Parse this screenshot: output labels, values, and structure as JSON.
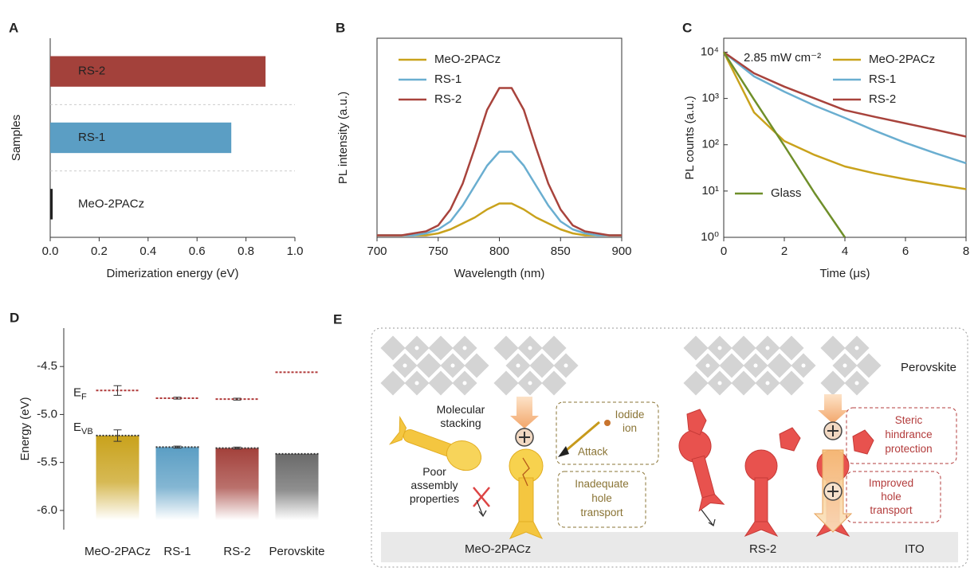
{
  "chart_data": [
    {
      "type": "hbar",
      "panel": "A",
      "categories": [
        "MeO-2PACz",
        "RS-1",
        "RS-2"
      ],
      "values": [
        0.01,
        0.74,
        0.88
      ],
      "colors": [
        "#222222",
        "#5b9ec4",
        "#a3413b"
      ],
      "xlim": [
        0,
        1
      ],
      "xticks": [
        {
          "value": 0,
          "label": "0.0"
        },
        0.2,
        0.4,
        0.6,
        0.8,
        {
          "value": 1,
          "label": "1.0"
        }
      ],
      "xlabel": "Dimerization energy (eV)",
      "ylabel": "Samples"
    },
    {
      "type": "line",
      "panel": "B",
      "xlabel": "Wavelength (nm)",
      "ylabel": "PL intensity (a.u.)",
      "x": [
        700,
        710,
        720,
        730,
        740,
        750,
        760,
        770,
        780,
        790,
        800,
        810,
        820,
        830,
        840,
        850,
        860,
        870,
        880,
        890,
        900
      ],
      "xlim": [
        700,
        900
      ],
      "xticks": [
        700,
        750,
        800,
        850,
        900
      ],
      "ylim": [
        0,
        1
      ],
      "legend": "upper left",
      "series": [
        {
          "name": "MeO-2PACz",
          "color": "#c9a21c",
          "values": [
            0.01,
            0.01,
            0.01,
            0.01,
            0.01,
            0.02,
            0.04,
            0.07,
            0.1,
            0.14,
            0.17,
            0.17,
            0.14,
            0.1,
            0.07,
            0.04,
            0.02,
            0.01,
            0.01,
            0.01,
            0.01
          ]
        },
        {
          "name": "RS-1",
          "color": "#6aaed0",
          "values": [
            0.01,
            0.01,
            0.01,
            0.01,
            0.02,
            0.04,
            0.08,
            0.16,
            0.26,
            0.36,
            0.43,
            0.43,
            0.36,
            0.26,
            0.16,
            0.08,
            0.04,
            0.02,
            0.01,
            0.01,
            0.01
          ]
        },
        {
          "name": "RS-2",
          "color": "#a8433c",
          "values": [
            0.01,
            0.01,
            0.01,
            0.02,
            0.03,
            0.06,
            0.14,
            0.27,
            0.45,
            0.64,
            0.75,
            0.75,
            0.64,
            0.45,
            0.27,
            0.14,
            0.06,
            0.03,
            0.02,
            0.01,
            0.01
          ]
        }
      ]
    },
    {
      "type": "line",
      "panel": "C",
      "xlabel": "Time (μs)",
      "ylabel": "PL counts (a.u.)",
      "log_y": true,
      "annotation": "2.85 mW cm⁻²",
      "x": [
        0,
        1,
        2,
        3,
        4,
        5,
        6,
        7,
        8
      ],
      "xlim": [
        0,
        8
      ],
      "xticks": [
        0,
        2,
        4,
        6,
        8
      ],
      "ylim": [
        1,
        20000
      ],
      "yticks": [
        {
          "value": 1,
          "label": "10⁰"
        },
        {
          "value": 10,
          "label": "10¹"
        },
        {
          "value": 100,
          "label": "10²"
        },
        {
          "value": 1000,
          "label": "10³"
        },
        {
          "value": 10000,
          "label": "10⁴"
        }
      ],
      "legend": "upper right",
      "series": [
        {
          "name": "MeO-2PACz",
          "color": "#c9a21c",
          "values": [
            10000,
            500,
            120,
            60,
            34,
            24,
            18,
            14,
            11
          ]
        },
        {
          "name": "RS-1",
          "color": "#6aaed0",
          "values": [
            10000,
            3000,
            1400,
            700,
            380,
            200,
            110,
            65,
            40
          ]
        },
        {
          "name": "RS-2",
          "color": "#a8433c",
          "values": [
            10000,
            3500,
            1800,
            1000,
            560,
            400,
            290,
            210,
            150
          ]
        },
        {
          "name": "Glass",
          "color": "#6f8f2a",
          "values": [
            10000,
            950,
            95,
            9,
            1,
            null,
            null,
            null,
            null
          ]
        }
      ]
    },
    {
      "type": "energy",
      "panel": "D",
      "categories": [
        "MeO-2PACz",
        "RS-1",
        "RS-2",
        "Perovskite"
      ],
      "values": [
        -5.22,
        -5.34,
        -5.35,
        -5.41
      ],
      "errors": [
        0.06,
        0.01,
        0.01,
        null
      ],
      "fermi": [
        -4.75,
        -4.83,
        -4.84,
        -4.56
      ],
      "fermi_errors": [
        0.05,
        0.01,
        0.01,
        null
      ],
      "colors": [
        "#c9a21c",
        "#5b9ec4",
        "#a3413b",
        "#6a6a6a"
      ],
      "fermi_color": "#b03a3a",
      "ylim": [
        -6.2,
        -4.1
      ],
      "yticks": [
        -4.5,
        {
          "value": -5,
          "label": "-5.0"
        },
        -5.5,
        {
          "value": -6,
          "label": "-6.0"
        }
      ],
      "ylabel": "Energy (eV)",
      "fermi_label": {
        "main": "E",
        "sub": "F"
      },
      "vb_label": {
        "main": "E",
        "sub": "VB"
      }
    }
  ],
  "diagram": {
    "panel": "E",
    "perovskite": "Perovskite",
    "molecular_stacking": [
      "Molecular",
      "stacking"
    ],
    "poor_assembly": [
      "Poor",
      "assembly",
      "properties"
    ],
    "iodide_ion": [
      "Iodide",
      "ion"
    ],
    "attack": "Attack",
    "inadequate": [
      "Inadequate",
      "hole",
      "transport"
    ],
    "steric": [
      "Steric",
      "hindrance",
      "protection"
    ],
    "improved": [
      "Improved",
      "hole",
      "transport"
    ],
    "meo_label": "MeO-2PACz",
    "rs2_label": "RS-2",
    "ito": "ITO"
  }
}
